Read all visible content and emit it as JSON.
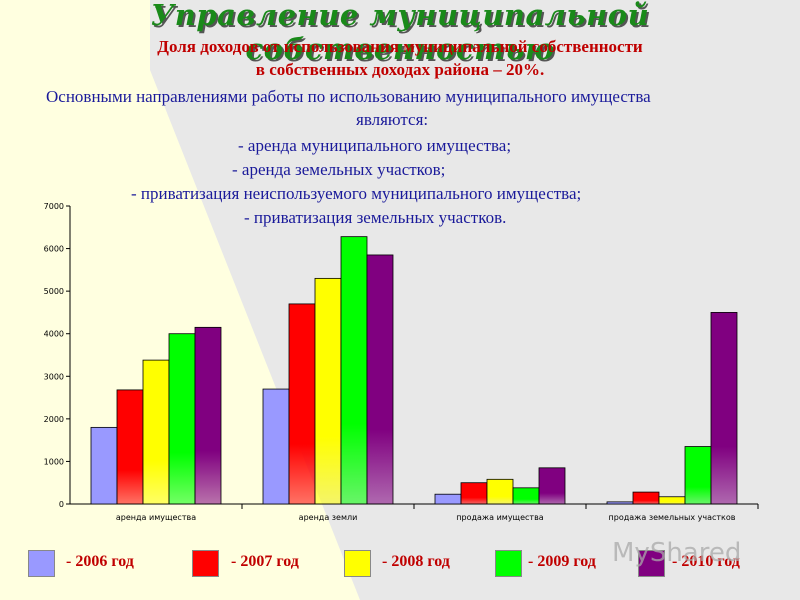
{
  "title": "Управление муниципальной собственностью",
  "subtitle_line1": "Доля доходов от использования муниципальной собственности",
  "subtitle_line2": "в собственных доходах района – 20%.",
  "text": {
    "line1": "Основными направлениями работы по использованию муниципального имущества",
    "line2": "являются:",
    "line3": "- аренда муниципального имущества;",
    "line4": "- аренда земельных участков;",
    "line5": "- приватизация  неиспользуемого муниципального имущества;",
    "line6": "- приватизация земельных участков."
  },
  "watermark": "MyShared",
  "chart_data": {
    "type": "bar",
    "categories": [
      "аренда имущества",
      "аренда земли",
      "продажа имущества",
      "продажа земельных участков"
    ],
    "series": [
      {
        "name": "- 2006 год",
        "values": [
          1800,
          2700,
          230,
          50
        ],
        "color": "#9999ff"
      },
      {
        "name": "- 2007 год",
        "values": [
          2680,
          4700,
          500,
          280
        ],
        "color": "#ff0000"
      },
      {
        "name": "- 2008 год",
        "values": [
          3380,
          5300,
          580,
          170
        ],
        "color": "#ffff00"
      },
      {
        "name": "- 2009 год",
        "values": [
          4000,
          6280,
          380,
          1350
        ],
        "color": "#00ff00"
      },
      {
        "name": "- 2010 год",
        "values": [
          4150,
          5850,
          850,
          4500
        ],
        "color": "#800080"
      }
    ],
    "yticks": [
      0,
      1000,
      2000,
      3000,
      4000,
      5000,
      6000,
      7000
    ],
    "ylim": [
      0,
      7000
    ],
    "legend_position": "bottom"
  }
}
